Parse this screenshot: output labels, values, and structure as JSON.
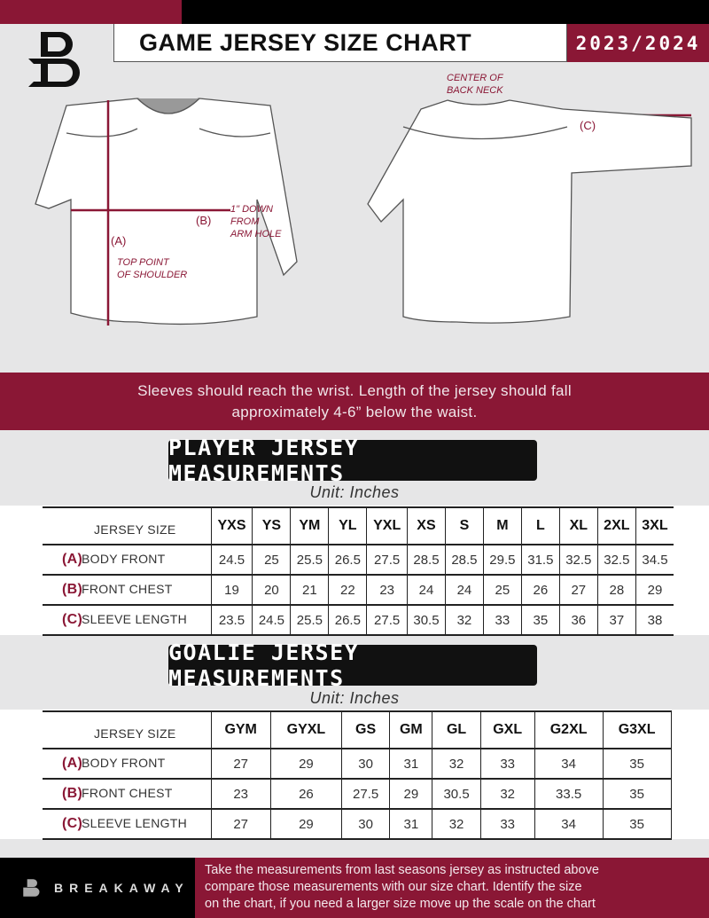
{
  "header": {
    "title": "GAME JERSEY SIZE CHART",
    "season": "2023/2024"
  },
  "diagram": {
    "front_labels": {
      "a": "(A)",
      "a_note": [
        "TOP POINT",
        "OF SHOULDER"
      ],
      "b": "(B)",
      "b_note": [
        "1\" DOWN",
        "FROM",
        "ARM HOLE"
      ]
    },
    "back_labels": {
      "c": "(C)",
      "c_note": [
        "CENTER OF",
        "BACK NECK"
      ]
    }
  },
  "instructions": [
    "Sleeves should reach the wrist. Length of the jersey should fall",
    "approximately 4-6” below the waist."
  ],
  "player": {
    "heading": "PLAYER JERSEY MEASUREMENTS",
    "unit": "Unit: Inches",
    "size_label": "JERSEY SIZE",
    "sizes": [
      "YXS",
      "YS",
      "YM",
      "YL",
      "YXL",
      "XS",
      "S",
      "M",
      "L",
      "XL",
      "2XL",
      "3XL"
    ],
    "rows": [
      {
        "letter": "(A)",
        "name": "BODY FRONT",
        "values": [
          "24.5",
          "25",
          "25.5",
          "26.5",
          "27.5",
          "28.5",
          "28.5",
          "29.5",
          "31.5",
          "32.5",
          "32.5",
          "34.5"
        ]
      },
      {
        "letter": "(B)",
        "name": "FRONT CHEST",
        "values": [
          "19",
          "20",
          "21",
          "22",
          "23",
          "24",
          "24",
          "25",
          "26",
          "27",
          "28",
          "29"
        ]
      },
      {
        "letter": "(C)",
        "name": "SLEEVE LENGTH",
        "values": [
          "23.5",
          "24.5",
          "25.5",
          "26.5",
          "27.5",
          "30.5",
          "32",
          "33",
          "35",
          "36",
          "37",
          "38"
        ]
      }
    ]
  },
  "goalie": {
    "heading": "GOALIE JERSEY MEASUREMENTS",
    "unit": "Unit: Inches",
    "size_label": "JERSEY SIZE",
    "sizes": [
      "GYM",
      "GYXL",
      "GS",
      "GM",
      "GL",
      "GXL",
      "G2XL",
      "G3XL"
    ],
    "rows": [
      {
        "letter": "(A)",
        "name": "BODY FRONT",
        "values": [
          "27",
          "29",
          "30",
          "31",
          "32",
          "33",
          "34",
          "35"
        ]
      },
      {
        "letter": "(B)",
        "name": "FRONT CHEST",
        "values": [
          "23",
          "26",
          "27.5",
          "29",
          "30.5",
          "32",
          "33.5",
          "35"
        ]
      },
      {
        "letter": "(C)",
        "name": "SLEEVE LENGTH",
        "values": [
          "27",
          "29",
          "30",
          "31",
          "32",
          "33",
          "34",
          "35"
        ]
      }
    ]
  },
  "footer": {
    "brand": "BREAKAWAY",
    "text": [
      "Take the measurements from last seasons jersey as instructed above",
      "compare those measurements  with our size chart. Identify the size",
      "on the chart, if you need a larger size move up the scale on the chart"
    ]
  },
  "colors": {
    "accent": "#8a1735",
    "dark": "#111111",
    "background": "#e6e6e7"
  }
}
